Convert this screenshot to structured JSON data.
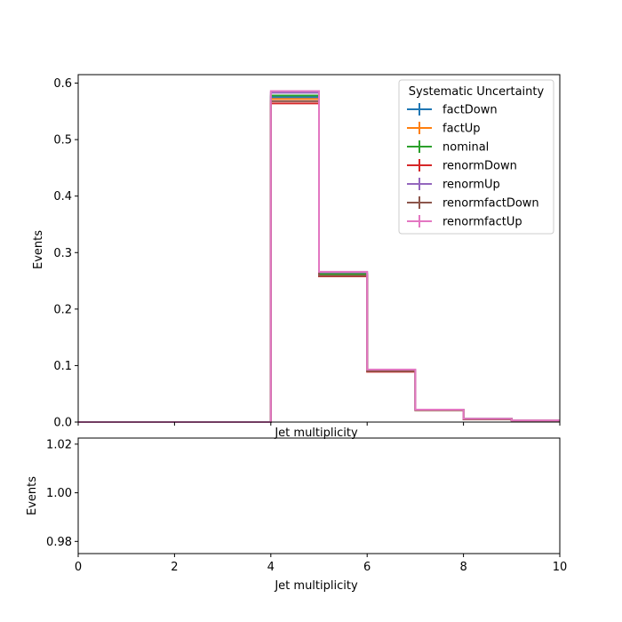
{
  "chart_data": [
    {
      "type": "line",
      "drawstyle": "steps",
      "title": "",
      "xlabel": "Jet multiplicity",
      "ylabel": "Events",
      "xlim": [
        0,
        10
      ],
      "ylim": [
        0,
        0.615
      ],
      "x_ticks": [
        0,
        2,
        4,
        6,
        8,
        10
      ],
      "x_tick_labels_visible": false,
      "y_ticks": [
        0.0,
        0.1,
        0.2,
        0.3,
        0.4,
        0.5,
        0.6
      ],
      "y_tick_labels": [
        "0.0",
        "0.1",
        "0.2",
        "0.3",
        "0.4",
        "0.5",
        "0.6"
      ],
      "bin_edges": [
        0,
        1,
        2,
        3,
        4,
        5,
        6,
        7,
        8,
        9,
        10
      ],
      "legend": {
        "title": "Systematic Uncertainty",
        "position": "top-right"
      },
      "series": [
        {
          "name": "factDown",
          "color": "#1f77b4",
          "values": [
            0,
            0,
            0,
            0,
            0.575,
            0.262,
            0.091,
            0.022,
            0.006,
            0.003
          ]
        },
        {
          "name": "factUp",
          "color": "#ff7f0e",
          "values": [
            0,
            0,
            0,
            0,
            0.572,
            0.261,
            0.09,
            0.022,
            0.006,
            0.003
          ]
        },
        {
          "name": "nominal",
          "color": "#2ca02c",
          "values": [
            0,
            0,
            0,
            0,
            0.578,
            0.262,
            0.091,
            0.022,
            0.006,
            0.003
          ]
        },
        {
          "name": "renormDown",
          "color": "#d62728",
          "values": [
            0,
            0,
            0,
            0,
            0.564,
            0.258,
            0.089,
            0.021,
            0.005,
            0.003
          ]
        },
        {
          "name": "renormUp",
          "color": "#9467bd",
          "values": [
            0,
            0,
            0,
            0,
            0.583,
            0.265,
            0.092,
            0.022,
            0.006,
            0.003
          ]
        },
        {
          "name": "renormfactDown",
          "color": "#8c564b",
          "values": [
            0,
            0,
            0,
            0,
            0.568,
            0.259,
            0.09,
            0.021,
            0.005,
            0.003
          ]
        },
        {
          "name": "renormfactUp",
          "color": "#e377c2",
          "values": [
            0,
            0,
            0,
            0,
            0.586,
            0.266,
            0.093,
            0.022,
            0.006,
            0.003
          ]
        }
      ]
    },
    {
      "type": "line",
      "title": "",
      "xlabel": "Jet multiplicity",
      "ylabel": "Events",
      "xlim": [
        0,
        10
      ],
      "ylim": [
        0.975,
        1.0225
      ],
      "x_ticks": [
        0,
        2,
        4,
        6,
        8,
        10
      ],
      "x_tick_labels": [
        "0",
        "2",
        "4",
        "6",
        "8",
        "10"
      ],
      "y_ticks": [
        0.98,
        1.0,
        1.02
      ],
      "y_tick_labels": [
        "0.98",
        "1.00",
        "1.02"
      ],
      "series": []
    }
  ]
}
